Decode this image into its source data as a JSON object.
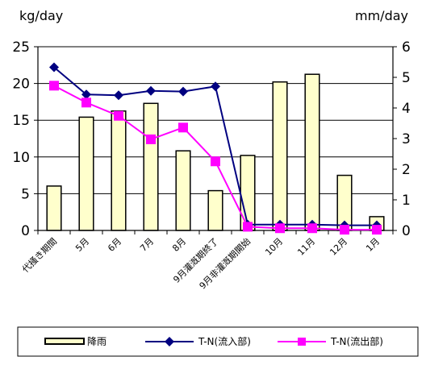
{
  "chart_data": {
    "type": "bar",
    "left_unit": "kg/day",
    "right_unit": "mm/day",
    "categories": [
      "代掻き期間",
      "5月",
      "6月",
      "7月",
      "8月",
      "9月灌漑期終了",
      "9月非灌漑期開始",
      "10月",
      "11月",
      "12月",
      "1月"
    ],
    "left_axis": {
      "min": 0,
      "max": 25,
      "ticks": [
        "0",
        "5",
        "10",
        "15",
        "20",
        "25"
      ]
    },
    "right_axis": {
      "min": 0,
      "max": 6,
      "ticks": [
        "0",
        "1",
        "2",
        "3",
        "4",
        "5",
        "6"
      ]
    },
    "series": [
      {
        "name": "降雨",
        "type": "bar",
        "axis": "right",
        "color": "#ffffcc",
        "stroke": "#000000",
        "values": [
          1.45,
          3.7,
          3.9,
          4.15,
          2.6,
          1.3,
          2.45,
          4.85,
          5.1,
          1.8,
          0.45
        ]
      },
      {
        "name": "T-N(流入部)",
        "type": "line",
        "axis": "left",
        "color": "#000080",
        "marker": "diamond",
        "values": [
          22.2,
          18.5,
          18.4,
          19.0,
          18.9,
          19.6,
          0.8,
          0.8,
          0.8,
          0.7,
          0.7
        ]
      },
      {
        "name": "T-N(流出部)",
        "type": "line",
        "axis": "left",
        "color": "#ff00ff",
        "marker": "square",
        "values": [
          19.7,
          17.4,
          15.6,
          12.4,
          14.0,
          9.4,
          0.5,
          0.3,
          0.3,
          0.1,
          0.1
        ]
      }
    ],
    "gridlines": true,
    "legend_position": "bottom"
  }
}
